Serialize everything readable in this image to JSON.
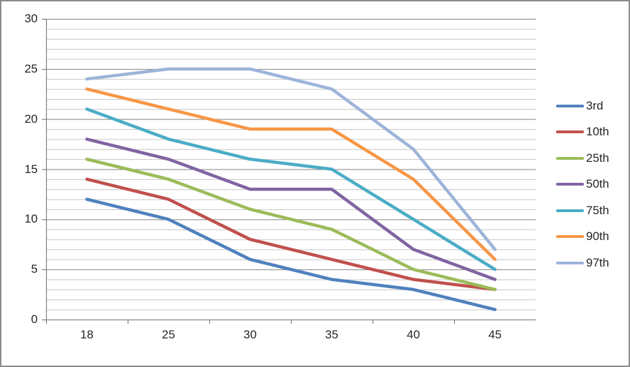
{
  "chart_data": {
    "type": "line",
    "title": "",
    "xlabel": "",
    "ylabel": "",
    "categories": [
      "18",
      "25",
      "30",
      "35",
      "40",
      "45"
    ],
    "series": [
      {
        "name": "3rd",
        "color": "#4F81BD",
        "values": [
          12,
          10,
          6,
          4,
          3,
          1
        ]
      },
      {
        "name": "10th",
        "color": "#C0504D",
        "values": [
          14,
          12,
          8,
          6,
          4,
          3
        ]
      },
      {
        "name": "25th",
        "color": "#9BBB59",
        "values": [
          16,
          14,
          11,
          9,
          5,
          3
        ]
      },
      {
        "name": "50th",
        "color": "#8064A2",
        "values": [
          18,
          16,
          13,
          13,
          7,
          4
        ]
      },
      {
        "name": "75th",
        "color": "#4BACC6",
        "values": [
          21,
          18,
          16,
          15,
          10,
          5
        ]
      },
      {
        "name": "90th",
        "color": "#F79646",
        "values": [
          23,
          21,
          19,
          19,
          14,
          6
        ]
      },
      {
        "name": "97th",
        "color": "#9DB4D9",
        "values": [
          24,
          25,
          25,
          23,
          17,
          7
        ]
      }
    ],
    "y_axis": {
      "min": 0,
      "max": 30,
      "major_step": 5,
      "minor_step": 1,
      "tick_labels": [
        "0",
        "5",
        "10",
        "15",
        "20",
        "25",
        "30"
      ]
    },
    "x_axis": {
      "tick_labels": [
        "18",
        "25",
        "30",
        "35",
        "40",
        "45"
      ]
    },
    "legend_position": "right",
    "grid": {
      "minor": true,
      "major": true
    },
    "colors": {
      "minor_gridline": "#C6C6C6",
      "major_gridline": "#828282",
      "axis_line": "#6E6E6E",
      "text": "#252525",
      "frame_border": "#8A8A8A",
      "background": "#FFFFFF"
    }
  }
}
